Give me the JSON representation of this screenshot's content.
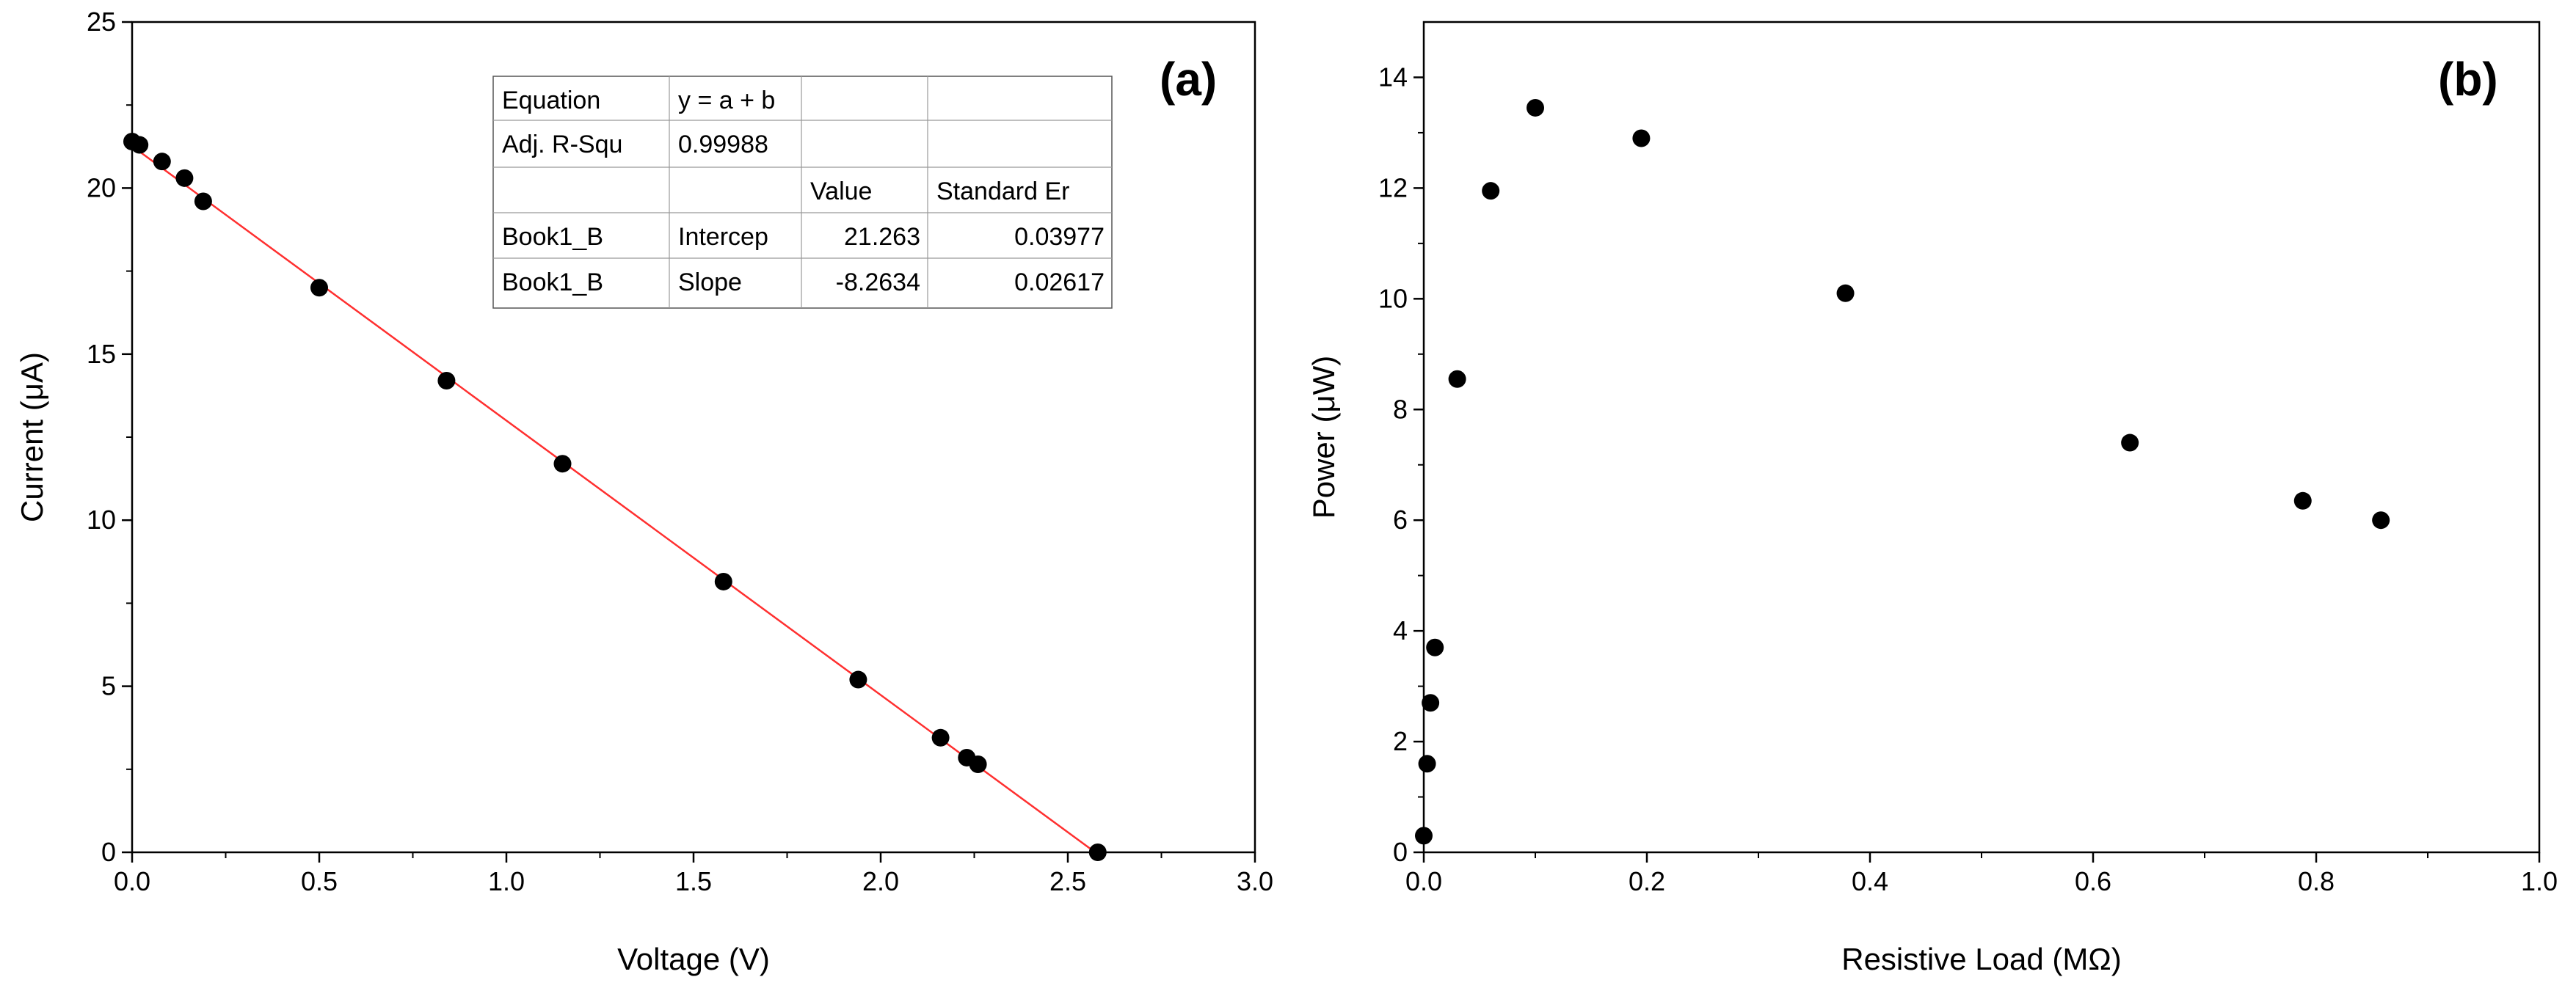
{
  "chart_data": [
    {
      "type": "scatter",
      "panel_label": "(a)",
      "xlabel": "Voltage (V)",
      "ylabel": "Current (μA)",
      "xlim": [
        0,
        3.0
      ],
      "ylim": [
        0,
        25
      ],
      "xticks": [
        "0.0",
        "0.5",
        "1.0",
        "1.5",
        "2.0",
        "2.5",
        "3.0"
      ],
      "yticks": [
        "0",
        "5",
        "10",
        "15",
        "20",
        "25"
      ],
      "series": [
        {
          "name": "Book1_B",
          "x": [
            0.0,
            0.02,
            0.08,
            0.14,
            0.19,
            0.5,
            0.84,
            1.15,
            1.58,
            1.94,
            2.16,
            2.23,
            2.26,
            2.58
          ],
          "y": [
            21.4,
            21.3,
            20.8,
            20.3,
            19.6,
            17.0,
            14.2,
            11.7,
            8.15,
            5.2,
            3.45,
            2.85,
            2.65,
            0.0
          ]
        }
      ],
      "fit": {
        "type": "linear",
        "intercept": 21.263,
        "slope": -8.2634,
        "x_range": [
          0.0,
          2.58
        ],
        "color": "#ff3030"
      },
      "fit_table": {
        "rows": [
          [
            "Equation",
            "y = a + b",
            "",
            ""
          ],
          [
            "Adj. R-Squ",
            "0.99988",
            "",
            ""
          ],
          [
            "",
            "",
            "Value",
            "Standard Er"
          ],
          [
            "Book1_B",
            "Intercep",
            "21.263",
            "0.03977"
          ],
          [
            "Book1_B",
            "Slope",
            "-8.2634",
            "0.02617"
          ]
        ]
      }
    },
    {
      "type": "scatter",
      "panel_label": "(b)",
      "xlabel": "Resistive Load (MΩ)",
      "ylabel": "Power (μW)",
      "xlim": [
        0,
        1.0
      ],
      "ylim": [
        0,
        15
      ],
      "xticks": [
        "0.0",
        "0.2",
        "0.4",
        "0.6",
        "0.8",
        "1.0"
      ],
      "yticks": [
        "0",
        "2",
        "4",
        "6",
        "8",
        "10",
        "12",
        "14"
      ],
      "series": [
        {
          "name": "Power",
          "x": [
            0.0,
            0.003,
            0.006,
            0.01,
            0.03,
            0.06,
            0.1,
            0.195,
            0.378,
            0.633,
            0.788,
            0.858
          ],
          "y": [
            0.3,
            1.6,
            2.7,
            3.7,
            8.55,
            11.95,
            13.45,
            12.9,
            10.1,
            7.4,
            6.35,
            6.0
          ]
        }
      ]
    }
  ]
}
